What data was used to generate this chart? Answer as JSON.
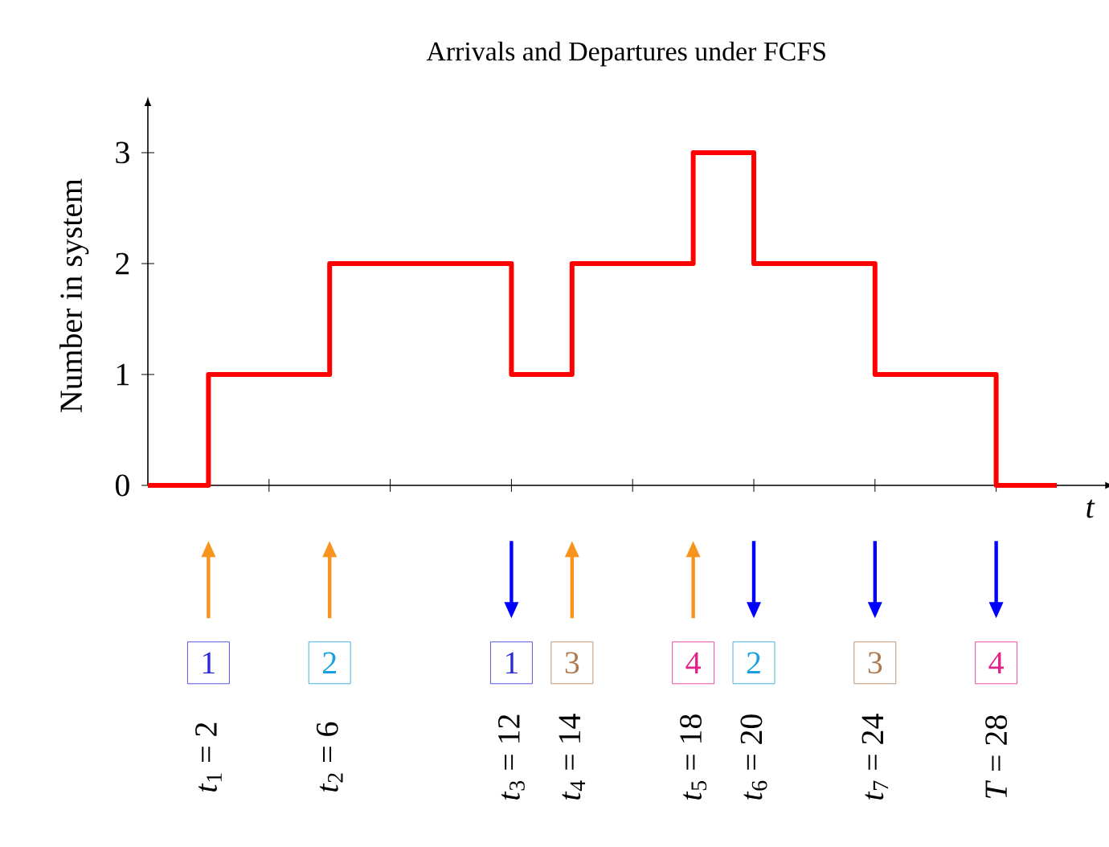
{
  "chart_data": {
    "type": "step",
    "title": "Arrivals and Departures under FCFS",
    "xlabel": "t",
    "ylabel": "Number in system",
    "categories": [
      null,
      null,
      null,
      null,
      null,
      null,
      null,
      null,
      null,
      null,
      null,
      null,
      null,
      null,
      null,
      null,
      null,
      null,
      null,
      null,
      null,
      null,
      null,
      null,
      null,
      null,
      null,
      null,
      null,
      null,
      null
    ],
    "values": [
      0,
      0,
      1,
      1,
      1,
      1,
      2,
      2,
      2,
      2,
      2,
      2,
      1,
      1,
      2,
      2,
      2,
      2,
      3,
      3,
      2,
      2,
      2,
      2,
      1,
      1,
      1,
      1,
      0,
      0,
      0
    ],
    "color": "#ff0000",
    "ylim": [
      0,
      3.42
    ],
    "yticks": [
      0,
      1,
      2,
      3
    ],
    "tick_labels": "y",
    "annotations": [
      "1",
      "*t*$_{1}$ = 2",
      "2",
      "*t*$_{2}$ = 6",
      "1",
      "*t*$_{3}$ = 12",
      "3",
      "*t*$_{4}$ = 14",
      "4",
      "*t*$_{5}$ = 18",
      "2",
      "*t*$_{6}$ = 20",
      "3",
      "*t*$_{7}$ = 24",
      "4",
      "*T* = 28"
    ]
  }
}
